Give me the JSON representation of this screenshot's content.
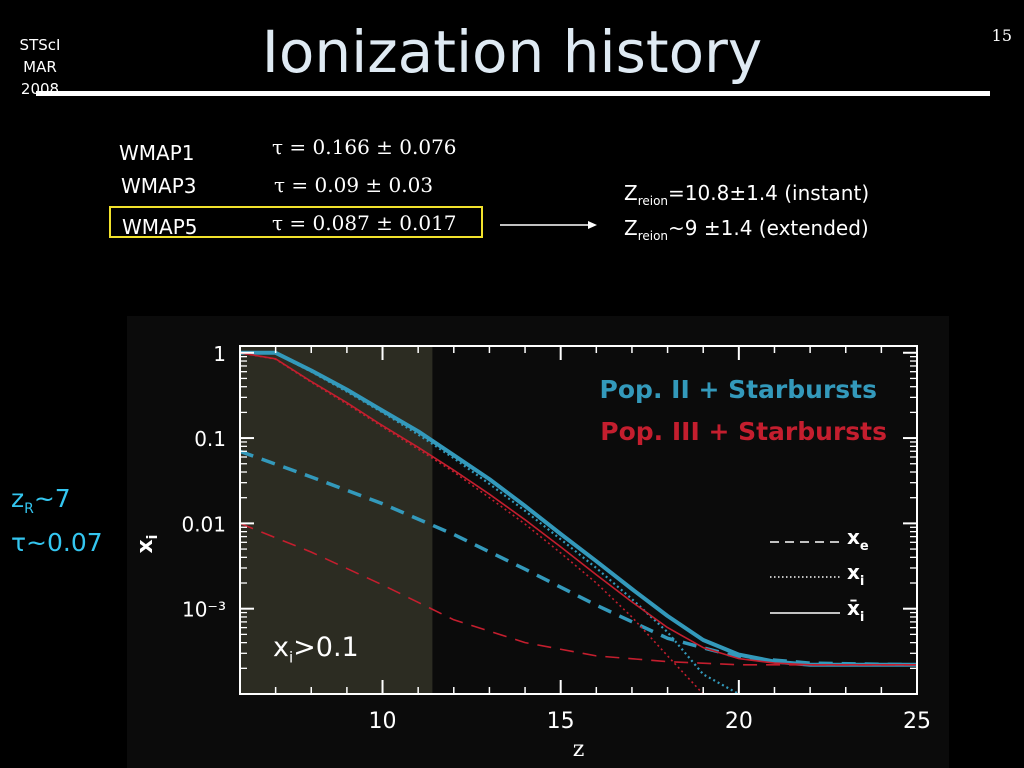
{
  "slide": {
    "corner_label_line1": "STScI",
    "corner_label_line2": "MAR 2008",
    "title": "Ionization history",
    "page_number": "15"
  },
  "measurements": [
    {
      "label": "WMAP1",
      "equation": "τ = 0.166 ± 0.076",
      "highlighted": false
    },
    {
      "label": "WMAP3",
      "equation": "τ = 0.09 ± 0.03",
      "highlighted": false
    },
    {
      "label": "WMAP5",
      "equation": "τ = 0.087 ± 0.017",
      "highlighted": true
    }
  ],
  "highlight_color": "#f2e22c",
  "reionization": {
    "line1": {
      "symbol": "Z",
      "subscript": "reion",
      "text": "=10.8±1.4 (instant)"
    },
    "line2": {
      "symbol": "Z",
      "subscript": "reion",
      "text": "~9 ±1.4 (extended)"
    }
  },
  "side_notes": {
    "line1_prefix": "z",
    "line1_subscript": "R",
    "line1_suffix": "~7",
    "line2": "τ~0.07",
    "color": "#34c6f0"
  },
  "chart_data": {
    "type": "line",
    "xlabel": "z",
    "ylabel": "x",
    "ylabel_subscript": "i",
    "yscale": "log",
    "xlim": [
      6,
      25
    ],
    "ylim": [
      0.0001,
      1.2
    ],
    "x_ticks": [
      10,
      15,
      20,
      25
    ],
    "x_tick_labels": [
      "10",
      "15",
      "20",
      "25"
    ],
    "y_ticks": [
      1,
      0.1,
      0.01,
      0.001
    ],
    "y_tick_labels": [
      "1",
      "0.1",
      "0.01",
      "10⁻³"
    ],
    "shaded_region": {
      "x_from": 6,
      "x_to": 11.4,
      "color": "#2c2c22",
      "label_prefix": "x",
      "label_subscript": "i",
      "label_suffix": ">0.1"
    },
    "colors": {
      "pop2": "#3399bb",
      "pop3": "#c41e2e"
    },
    "legend_models": [
      "Pop. II + Starbursts",
      "Pop. III + Starbursts"
    ],
    "legend_linestyles": [
      {
        "style": "dashed",
        "label": "x",
        "sub": "e"
      },
      {
        "style": "dotted",
        "label": "x",
        "sub": "i"
      },
      {
        "style": "solid",
        "label": "x̄",
        "sub": "i"
      }
    ],
    "series": [
      {
        "name": "Pop. II + Starbursts",
        "quantity": "x̄i",
        "style": "solid",
        "x": [
          6,
          7,
          8,
          9,
          10,
          11,
          12,
          13,
          14,
          15,
          16,
          17,
          18,
          19,
          20,
          21,
          22,
          23,
          24,
          25
        ],
        "y": [
          1,
          1,
          0.62,
          0.37,
          0.21,
          0.12,
          0.063,
          0.033,
          0.016,
          0.0075,
          0.0036,
          0.0017,
          0.00082,
          0.00043,
          0.00029,
          0.00024,
          0.00022,
          0.00022,
          0.00022,
          0.00022
        ]
      },
      {
        "name": "Pop. II + Starbursts",
        "quantity": "xi",
        "style": "dotted",
        "x": [
          6,
          7,
          8,
          9,
          10,
          11,
          12,
          13,
          14,
          15,
          16,
          17,
          18,
          19,
          20
        ],
        "y": [
          1,
          0.98,
          0.6,
          0.35,
          0.2,
          0.11,
          0.058,
          0.029,
          0.014,
          0.0065,
          0.003,
          0.0013,
          0.00053,
          0.00017,
          4e-05
        ]
      },
      {
        "name": "Pop. II + Starbursts",
        "quantity": "xe",
        "style": "dashed",
        "x": [
          6,
          8,
          10,
          12,
          14,
          16,
          18,
          20,
          22,
          25
        ],
        "y": [
          0.07,
          0.035,
          0.017,
          0.0074,
          0.0029,
          0.0011,
          0.00045,
          0.00027,
          0.00023,
          0.00022
        ]
      },
      {
        "name": "Pop. III + Starbursts",
        "quantity": "x̄i",
        "style": "solid",
        "x": [
          6,
          7,
          8,
          9,
          10,
          11,
          12,
          13,
          14,
          15,
          16,
          17,
          18,
          19,
          20,
          21,
          22,
          23,
          24,
          25
        ],
        "y": [
          1,
          0.85,
          0.46,
          0.26,
          0.14,
          0.078,
          0.042,
          0.022,
          0.011,
          0.0053,
          0.0025,
          0.0012,
          0.0006,
          0.00035,
          0.00026,
          0.00023,
          0.00022,
          0.00022,
          0.00022,
          0.00022
        ]
      },
      {
        "name": "Pop. III + Starbursts",
        "quantity": "xi",
        "style": "dotted",
        "x": [
          6,
          7,
          8,
          9,
          10,
          11,
          12,
          13,
          14,
          15,
          16,
          17,
          18,
          19
        ],
        "y": [
          1,
          0.84,
          0.45,
          0.25,
          0.135,
          0.074,
          0.04,
          0.02,
          0.0098,
          0.0045,
          0.002,
          0.0008,
          0.00028,
          7e-05
        ]
      },
      {
        "name": "Pop. III + Starbursts",
        "quantity": "xe",
        "style": "dashed",
        "x": [
          6,
          8,
          10,
          12,
          14,
          16,
          18,
          20,
          22,
          25
        ],
        "y": [
          0.01,
          0.0046,
          0.0019,
          0.00074,
          0.0004,
          0.00028,
          0.00024,
          0.00022,
          0.00022,
          0.00022
        ]
      }
    ]
  }
}
